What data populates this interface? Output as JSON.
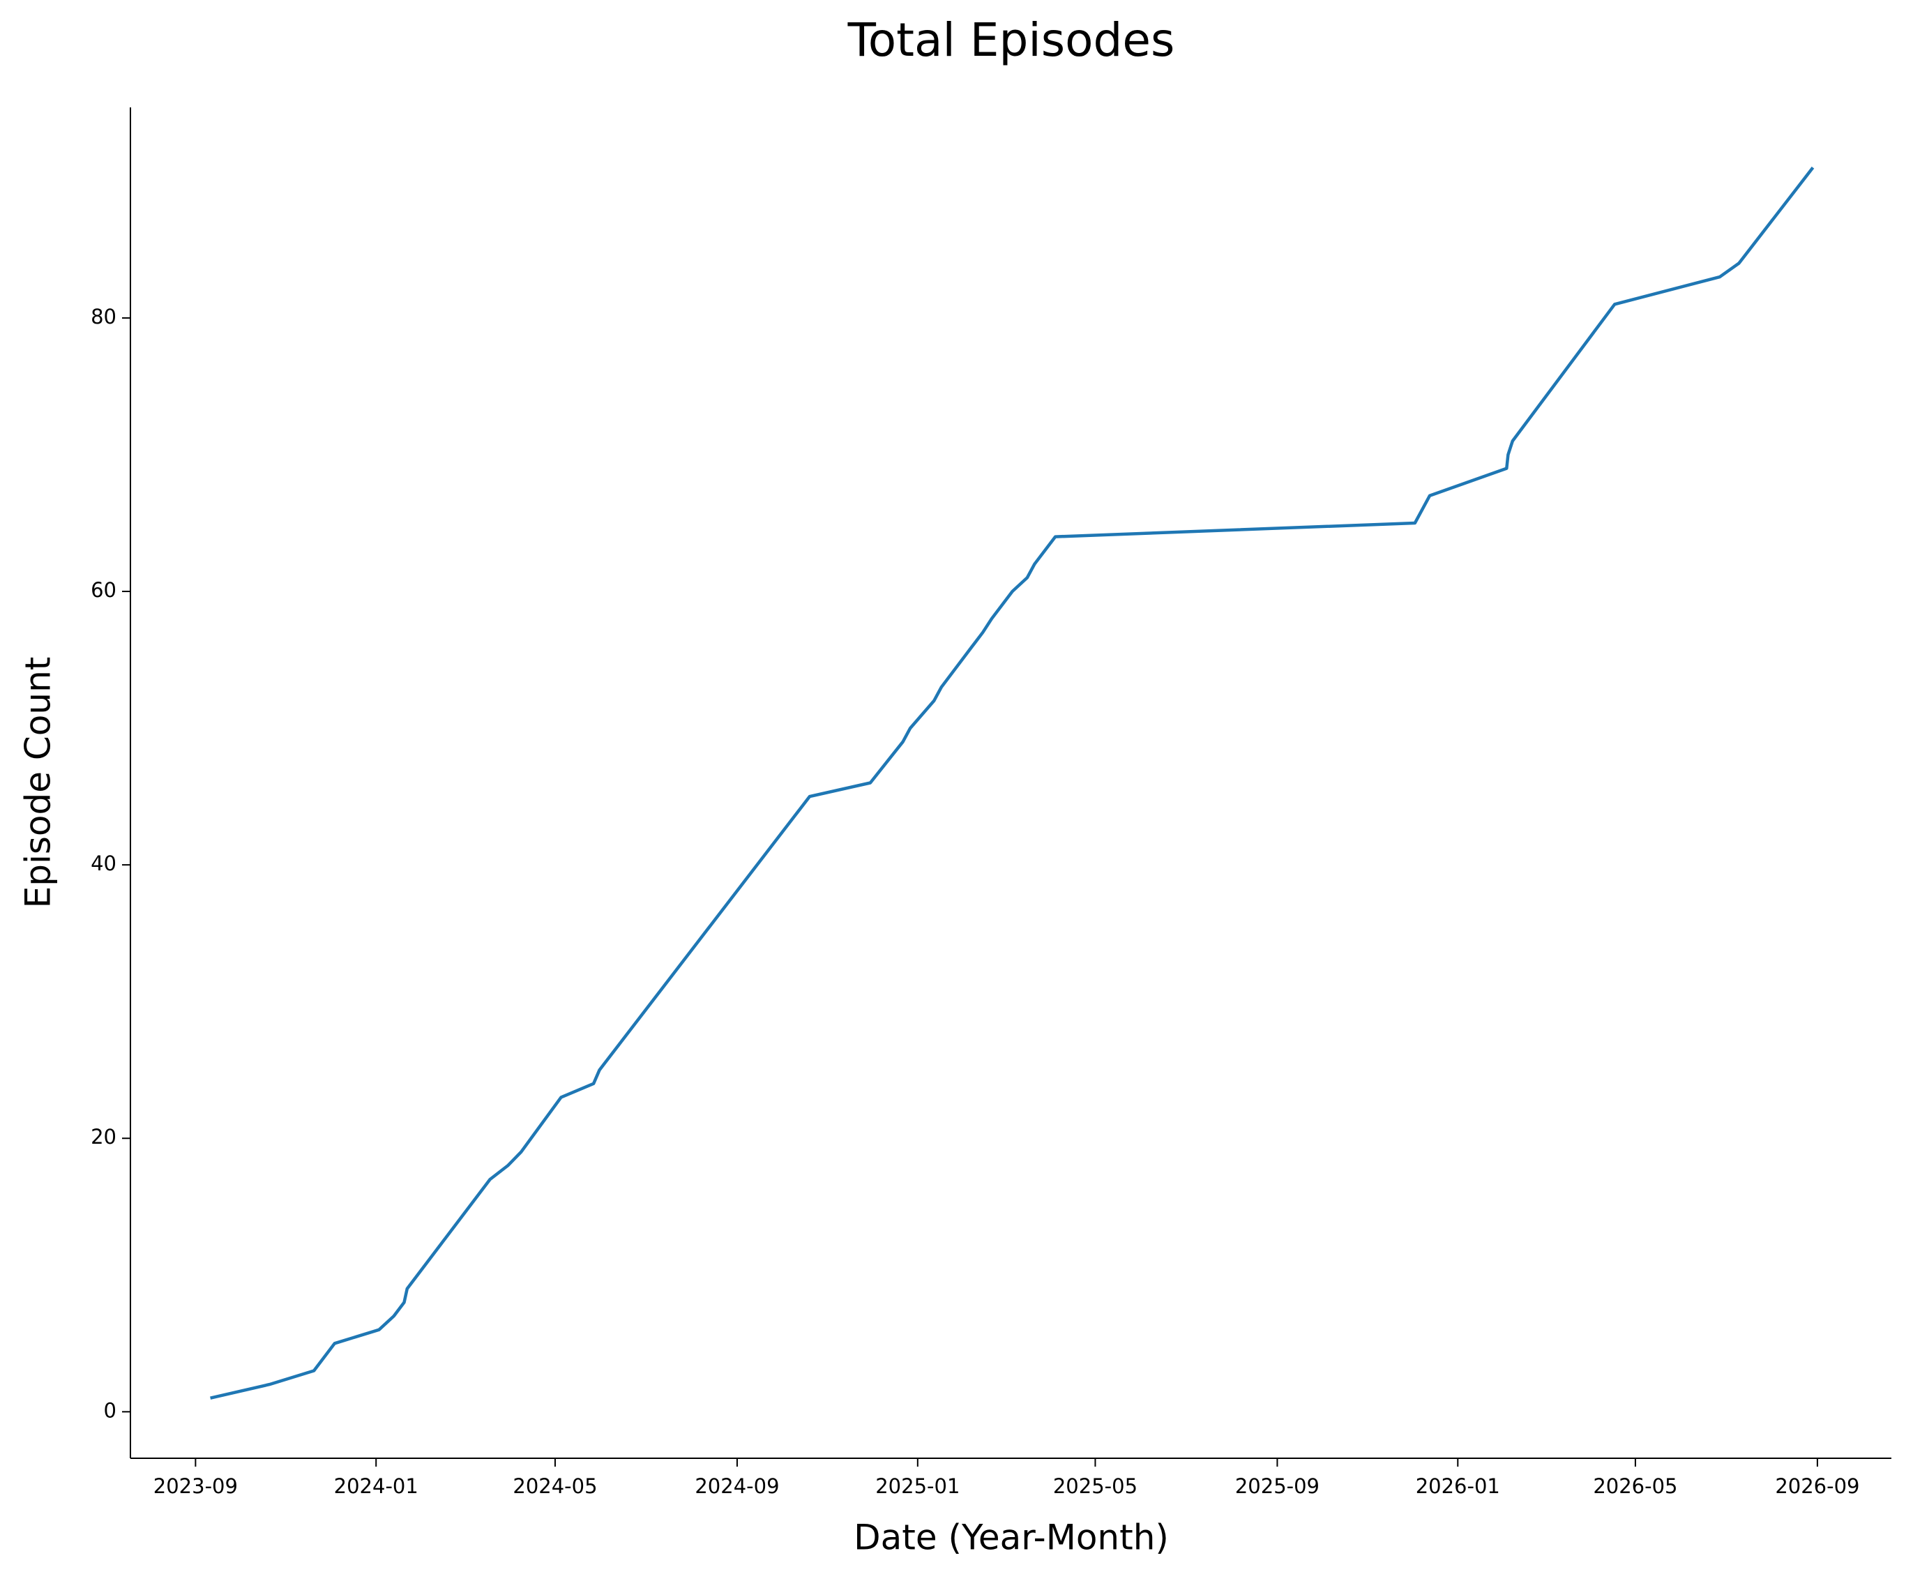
{
  "chart_data": {
    "type": "line",
    "title": "Total Episodes",
    "x_label": "Date (Year-Month)",
    "y_label": "Episode Count",
    "x": [
      "2023-09-11",
      "2023-10-21",
      "2023-11-20",
      "2023-12-04",
      "2024-01-03",
      "2024-01-13",
      "2024-01-20",
      "2024-01-22",
      "2024-03-18",
      "2024-03-30",
      "2024-04-08",
      "2024-05-05",
      "2024-05-27",
      "2024-05-31",
      "2024-10-20",
      "2024-11-30",
      "2024-12-22",
      "2024-12-27",
      "2025-01-04",
      "2025-01-12",
      "2025-01-17",
      "2025-02-07",
      "2025-02-14",
      "2025-02-20",
      "2025-03-06",
      "2025-03-16",
      "2025-03-21",
      "2025-04-04",
      "2025-12-03",
      "2025-12-13",
      "2026-02-03",
      "2026-02-04",
      "2026-02-07",
      "2026-04-17",
      "2026-06-27",
      "2026-07-10",
      "2026-08-29"
    ],
    "series": [
      {
        "name": "Total Episodes",
        "color": "#1f77b4",
        "values": [
          1,
          2,
          3,
          5,
          6,
          7,
          8,
          9,
          17,
          18,
          19,
          23,
          24,
          25,
          45,
          46,
          49,
          50,
          51,
          52,
          53,
          56,
          57,
          58,
          60,
          61,
          62,
          64,
          65,
          67,
          69,
          70,
          71,
          81,
          83,
          84,
          91
        ]
      }
    ],
    "xlim": [
      "2023-07-19",
      "2026-10-21"
    ],
    "xticks": [
      {
        "value": "2023-09-01",
        "label": "2023-09"
      },
      {
        "value": "2024-01-01",
        "label": "2024-01"
      },
      {
        "value": "2024-05-01",
        "label": "2024-05"
      },
      {
        "value": "2024-09-01",
        "label": "2024-09"
      },
      {
        "value": "2025-01-01",
        "label": "2025-01"
      },
      {
        "value": "2025-05-01",
        "label": "2025-05"
      },
      {
        "value": "2025-09-01",
        "label": "2025-09"
      },
      {
        "value": "2026-01-01",
        "label": "2026-01"
      },
      {
        "value": "2026-05-01",
        "label": "2026-05"
      },
      {
        "value": "2026-09-01",
        "label": "2026-09"
      }
    ],
    "ylim": [
      -3.4,
      95.4
    ],
    "yticks": [
      0,
      20,
      40,
      60,
      80
    ],
    "grid": false
  }
}
